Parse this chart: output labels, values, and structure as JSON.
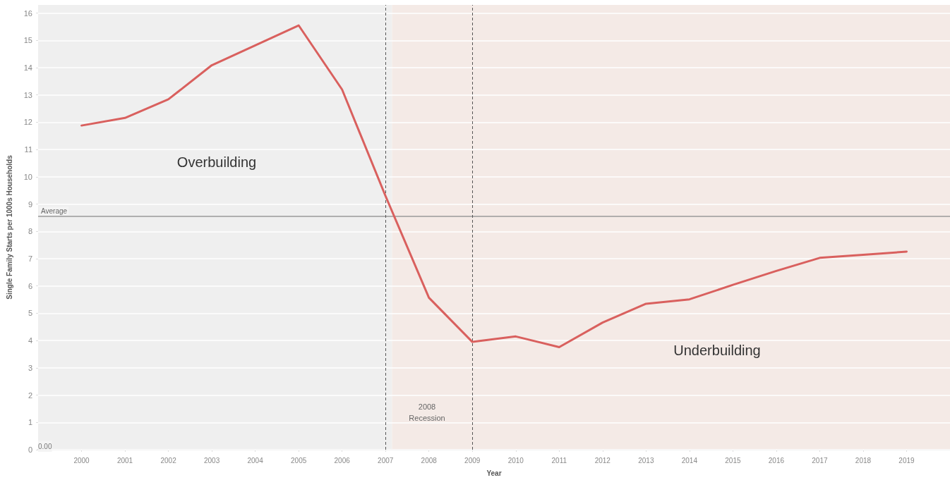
{
  "chart_data": {
    "type": "line",
    "xlabel": "Year",
    "ylabel": "Single Family Starts per 1000s Households",
    "x": [
      2000,
      2001,
      2002,
      2003,
      2004,
      2005,
      2006,
      2007,
      2008,
      2009,
      2010,
      2011,
      2012,
      2013,
      2014,
      2015,
      2016,
      2017,
      2018,
      2019
    ],
    "series": [
      {
        "color": "#d9605e",
        "values": [
          11.88,
          12.16,
          12.84,
          14.09,
          14.82,
          15.55,
          13.2,
          9.3,
          5.57,
          3.95,
          4.15,
          3.76,
          4.66,
          5.35,
          5.51,
          6.04,
          6.55,
          7.03,
          7.14,
          7.26
        ]
      }
    ],
    "xlim": [
      1999,
      2020
    ],
    "xticks": [
      2000,
      2001,
      2002,
      2003,
      2004,
      2005,
      2006,
      2007,
      2008,
      2009,
      2010,
      2011,
      2012,
      2013,
      2014,
      2015,
      2016,
      2017,
      2018,
      2019
    ],
    "ylim": [
      0,
      16.3
    ],
    "yticks": [
      0,
      1,
      2,
      3,
      4,
      5,
      6,
      7,
      8,
      9,
      10,
      11,
      12,
      13,
      14,
      15,
      16
    ],
    "grid": "y",
    "marker": "none",
    "line_style": "solid",
    "bands": [
      {
        "axis": "x",
        "from": 1999,
        "to": 2007.15,
        "color": "#efefef"
      },
      {
        "axis": "x",
        "from": 2007.15,
        "to": 2020,
        "color": "#f4eae6"
      }
    ],
    "ref_lines": [
      {
        "axis": "y",
        "value": 8.55,
        "label": "Average",
        "color": "#9a9a9a",
        "line_style": "solid"
      },
      {
        "axis": "x",
        "value": 2007,
        "color": "#555555",
        "line_style": "dashed"
      },
      {
        "axis": "x",
        "value": 2009,
        "color": "#555555",
        "line_style": "dashed"
      }
    ],
    "annotations": [
      "Overbuilding",
      "Underbuilding",
      "2008\nRecession",
      "0.00"
    ]
  }
}
